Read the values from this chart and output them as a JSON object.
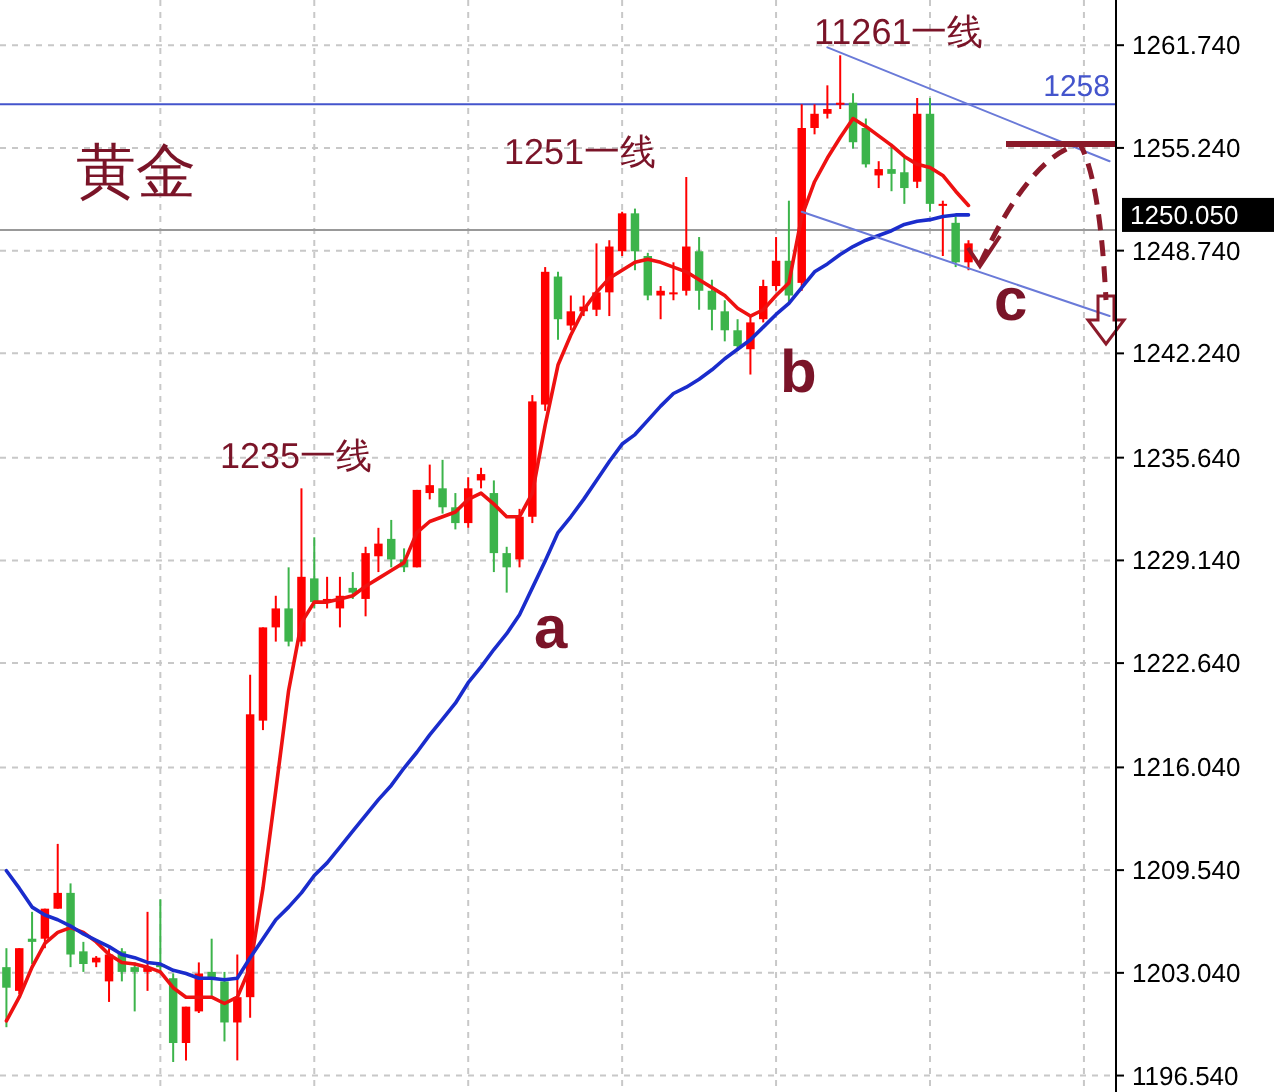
{
  "chart_data": {
    "type": "candlestick",
    "categories": [
      null,
      null,
      null,
      null,
      null,
      null,
      null,
      null,
      null,
      null,
      null,
      null,
      null,
      null,
      null,
      null,
      null,
      null,
      null,
      null,
      null,
      null,
      null,
      null,
      null,
      null,
      null,
      null,
      null,
      null,
      null,
      null,
      null,
      null,
      null,
      null,
      null,
      null,
      null,
      null,
      null,
      null,
      null,
      null,
      null,
      null,
      null,
      null,
      null,
      null,
      null,
      null,
      null,
      null,
      null,
      null,
      null,
      null,
      null,
      null,
      null,
      null,
      null,
      null,
      null,
      null,
      null,
      null,
      null,
      null,
      null,
      null,
      null,
      null,
      null,
      null,
      null,
      null,
      null,
      null,
      null,
      null,
      null,
      null,
      null,
      null,
      null
    ],
    "ohlc": [
      [
        1203.4,
        1204.6,
        1199.6,
        1202.1
      ],
      [
        1201.9,
        1204.6,
        1201.7,
        1204.6
      ],
      [
        1205.2,
        1206.9,
        1203.6,
        1205.0
      ],
      [
        1205.2,
        1207.1,
        1204.6,
        1207.1
      ],
      [
        1207.1,
        1211.2,
        1207.1,
        1208.1
      ],
      [
        1208.1,
        1208.7,
        1203.4,
        1204.2
      ],
      [
        1204.4,
        1205.0,
        1203.1,
        1203.6
      ],
      [
        1203.7,
        1204.1,
        1203.4,
        1204.0
      ],
      [
        1202.5,
        1204.6,
        1201.2,
        1204.2
      ],
      [
        1204.4,
        1204.6,
        1202.5,
        1203.1
      ],
      [
        1203.4,
        1203.7,
        1200.6,
        1203.1
      ],
      [
        1203.1,
        1206.9,
        1201.9,
        1203.4
      ],
      [
        1203.6,
        1207.7,
        1203.0,
        1203.4
      ],
      [
        1202.7,
        1203.0,
        1197.4,
        1198.6
      ],
      [
        1198.6,
        1200.9,
        1197.5,
        1200.9
      ],
      [
        1200.6,
        1203.7,
        1200.5,
        1203.0
      ],
      [
        1203.1,
        1205.2,
        1201.5,
        1202.7
      ],
      [
        1202.5,
        1203.1,
        1198.7,
        1199.9
      ],
      [
        1199.9,
        1204.2,
        1197.5,
        1201.5
      ],
      [
        1201.5,
        1221.9,
        1200.2,
        1219.4
      ],
      [
        1219.0,
        1224.9,
        1218.4,
        1224.9
      ],
      [
        1224.9,
        1226.9,
        1224.0,
        1226.1
      ],
      [
        1226.1,
        1228.7,
        1223.7,
        1224.0
      ],
      [
        1224.0,
        1233.7,
        1223.7,
        1228.1
      ],
      [
        1228.0,
        1230.6,
        1226.1,
        1226.5
      ],
      [
        1226.5,
        1228.1,
        1226.1,
        1226.7
      ],
      [
        1226.1,
        1228.1,
        1224.9,
        1226.9
      ],
      [
        1227.4,
        1228.4,
        1226.7,
        1227.1
      ],
      [
        1226.7,
        1230.0,
        1225.6,
        1229.6
      ],
      [
        1229.4,
        1231.2,
        1228.4,
        1230.2
      ],
      [
        1230.5,
        1231.7,
        1228.7,
        1229.2
      ],
      [
        1229.2,
        1229.9,
        1228.4,
        1228.7
      ],
      [
        1228.7,
        1233.6,
        1228.7,
        1233.6
      ],
      [
        1233.4,
        1235.2,
        1233.0,
        1233.9
      ],
      [
        1233.7,
        1235.5,
        1232.1,
        1232.5
      ],
      [
        1232.5,
        1233.4,
        1231.1,
        1231.5
      ],
      [
        1231.5,
        1234.4,
        1231.2,
        1233.7
      ],
      [
        1234.2,
        1235.0,
        1233.7,
        1234.6
      ],
      [
        1233.4,
        1234.2,
        1228.4,
        1229.6
      ],
      [
        1229.6,
        1230.0,
        1227.1,
        1228.7
      ],
      [
        1229.2,
        1232.4,
        1228.7,
        1231.9
      ],
      [
        1231.9,
        1239.6,
        1231.5,
        1239.2
      ],
      [
        1239.0,
        1247.7,
        1238.6,
        1247.4
      ],
      [
        1247.1,
        1247.4,
        1243.1,
        1244.4
      ],
      [
        1244.0,
        1245.9,
        1243.7,
        1244.9
      ],
      [
        1244.9,
        1245.9,
        1244.6,
        1245.2
      ],
      [
        1245.0,
        1249.2,
        1244.6,
        1246.1
      ],
      [
        1246.1,
        1249.4,
        1244.6,
        1249.0
      ],
      [
        1248.7,
        1251.2,
        1248.4,
        1251.1
      ],
      [
        1251.1,
        1251.4,
        1247.5,
        1248.7
      ],
      [
        1248.4,
        1248.6,
        1245.6,
        1245.9
      ],
      [
        1245.9,
        1246.5,
        1244.4,
        1246.2
      ],
      [
        1246.0,
        1248.0,
        1245.6,
        1246.1
      ],
      [
        1246.2,
        1253.4,
        1245.9,
        1249.0
      ],
      [
        1248.7,
        1249.6,
        1245.0,
        1246.2
      ],
      [
        1246.2,
        1246.9,
        1243.7,
        1245.0
      ],
      [
        1244.9,
        1245.6,
        1243.0,
        1243.7
      ],
      [
        1243.7,
        1244.4,
        1242.4,
        1242.7
      ],
      [
        1242.5,
        1244.6,
        1240.9,
        1244.2
      ],
      [
        1244.4,
        1246.9,
        1244.2,
        1246.5
      ],
      [
        1246.5,
        1249.6,
        1246.2,
        1248.1
      ],
      [
        1248.1,
        1251.9,
        1245.5,
        1245.9
      ],
      [
        1246.7,
        1258.0,
        1246.2,
        1256.5
      ],
      [
        1256.5,
        1258.0,
        1256.1,
        1257.4
      ],
      [
        1257.4,
        1259.2,
        1257.1,
        1257.7
      ],
      [
        1258.0,
        1261.1,
        1257.7,
        1258.1
      ],
      [
        1258.1,
        1258.7,
        1255.2,
        1255.6
      ],
      [
        1256.5,
        1257.1,
        1254.0,
        1254.2
      ],
      [
        1253.5,
        1254.4,
        1252.7,
        1253.9
      ],
      [
        1253.9,
        1255.5,
        1252.5,
        1253.6
      ],
      [
        1253.7,
        1254.6,
        1251.7,
        1252.7
      ],
      [
        1253.1,
        1258.4,
        1252.7,
        1257.4
      ],
      [
        1257.4,
        1258.4,
        1251.2,
        1251.7
      ],
      [
        1251.6,
        1251.9,
        1248.4,
        1251.7
      ],
      [
        1250.5,
        1250.9,
        1247.7,
        1248.0
      ],
      [
        1248.0,
        1249.4,
        1247.5,
        1249.2
      ],
      null,
      null,
      null,
      null,
      null,
      null,
      null,
      null,
      null,
      null,
      null
    ],
    "colors": [
      "#3cb44b",
      "#ff0000",
      "#3cb44b",
      "#ff0000",
      "#ff0000",
      "#3cb44b",
      "#3cb44b",
      "#ff0000",
      "#ff0000",
      "#3cb44b",
      "#3cb44b",
      "#ff0000",
      "#3cb44b",
      "#3cb44b",
      "#ff0000",
      "#ff0000",
      "#3cb44b",
      "#3cb44b",
      "#ff0000",
      "#ff0000",
      "#ff0000",
      "#ff0000",
      "#3cb44b",
      "#ff0000",
      "#3cb44b",
      "#ff0000",
      "#ff0000",
      "#3cb44b",
      "#ff0000",
      "#ff0000",
      "#3cb44b",
      "#3cb44b",
      "#ff0000",
      "#ff0000",
      "#3cb44b",
      "#3cb44b",
      "#ff0000",
      "#ff0000",
      "#3cb44b",
      "#3cb44b",
      "#ff0000",
      "#ff0000",
      "#ff0000",
      "#3cb44b",
      "#ff0000",
      "#ff0000",
      "#ff0000",
      "#ff0000",
      "#ff0000",
      "#3cb44b",
      "#3cb44b",
      "#ff0000",
      "#ff0000",
      "#ff0000",
      "#3cb44b",
      "#3cb44b",
      "#3cb44b",
      "#3cb44b",
      "#ff0000",
      "#ff0000",
      "#ff0000",
      "#3cb44b",
      "#ff0000",
      "#ff0000",
      "#ff0000",
      "#ff0000",
      "#3cb44b",
      "#3cb44b",
      "#ff0000",
      "#3cb44b",
      "#3cb44b",
      "#ff0000",
      "#3cb44b",
      "#ff0000",
      "#3cb44b",
      "#ff0000",
      null,
      null,
      null,
      null,
      null,
      null,
      null,
      null,
      null,
      null,
      null
    ],
    "series": [
      {
        "type": "line",
        "color": "#ee1111",
        "values": [
          1200.0,
          1201.5,
          1203.4,
          1204.9,
          1205.6,
          1205.9,
          1205.6,
          1205.0,
          1204.2,
          1203.7,
          1203.6,
          1203.4,
          1203.1,
          1202.1,
          1201.5,
          1201.5,
          1201.5,
          1201.1,
          1201.5,
          1203.4,
          1208.4,
          1214.6,
          1220.9,
          1225.2,
          1226.5,
          1226.5,
          1226.7,
          1226.9,
          1227.5,
          1228.0,
          1228.5,
          1229.0,
          1230.9,
          1231.6,
          1231.9,
          1232.2,
          1233.0,
          1233.4,
          1232.7,
          1231.9,
          1231.9,
          1233.4,
          1237.7,
          1241.5,
          1243.4,
          1245.0,
          1246.1,
          1247.0,
          1247.5,
          1248.0,
          1248.2,
          1248.0,
          1247.7,
          1247.4,
          1246.9,
          1246.4,
          1245.9,
          1245.1,
          1244.6,
          1245.0,
          1245.9,
          1246.7,
          1250.9,
          1253.1,
          1254.6,
          1255.9,
          1257.1,
          1256.6,
          1256.0,
          1255.4,
          1254.7,
          1254.2,
          1254.0,
          1253.5,
          1252.5,
          1251.6,
          null,
          null,
          null,
          null,
          null,
          null,
          null,
          null,
          null,
          null,
          null
        ]
      },
      {
        "type": "line",
        "color": "#1a2ccc",
        "values": [
          1209.5,
          1208.4,
          1207.2,
          1206.7,
          1206.4,
          1206.0,
          1205.5,
          1205.1,
          1204.7,
          1204.2,
          1204.0,
          1203.7,
          1203.6,
          1203.2,
          1203.0,
          1202.7,
          1202.7,
          1202.6,
          1202.7,
          1204.0,
          1205.2,
          1206.4,
          1207.2,
          1208.1,
          1209.2,
          1210.0,
          1211.0,
          1212.0,
          1213.0,
          1214.0,
          1214.9,
          1216.0,
          1217.0,
          1218.1,
          1219.1,
          1220.1,
          1221.4,
          1222.4,
          1223.5,
          1224.5,
          1225.7,
          1227.4,
          1229.1,
          1230.9,
          1231.9,
          1233.0,
          1234.2,
          1235.4,
          1236.5,
          1237.1,
          1238.0,
          1238.9,
          1239.7,
          1240.1,
          1240.6,
          1241.2,
          1241.9,
          1242.5,
          1243.1,
          1243.9,
          1244.7,
          1245.4,
          1246.4,
          1247.4,
          1247.9,
          1248.5,
          1249.0,
          1249.4,
          1249.7,
          1250.0,
          1250.4,
          1250.6,
          1250.7,
          1250.9,
          1251.0,
          1251.0,
          null,
          null,
          null,
          null,
          null,
          null,
          null,
          null,
          null,
          null,
          null
        ]
      },
      {
        "type": "line",
        "color": "#6a7ad8",
        "values": [
          null,
          null,
          null,
          null,
          null,
          null,
          null,
          null,
          null,
          null,
          null,
          null,
          null,
          null,
          null,
          null,
          null,
          null,
          null,
          null,
          null,
          null,
          null,
          null,
          null,
          null,
          null,
          null,
          null,
          null,
          null,
          null,
          null,
          null,
          null,
          null,
          null,
          null,
          null,
          null,
          null,
          null,
          null,
          null,
          null,
          null,
          null,
          null,
          null,
          null,
          null,
          null,
          null,
          null,
          null,
          null,
          null,
          null,
          null,
          null,
          null,
          null,
          null,
          null,
          1261.6,
          null,
          null,
          null,
          null,
          null,
          null,
          null,
          null,
          null,
          null,
          null,
          null,
          null,
          null,
          null,
          null,
          null,
          null,
          null,
          null,
          null,
          1254.4
        ]
      },
      {
        "type": "line",
        "color": "#6a7ad8",
        "values": [
          null,
          null,
          null,
          null,
          null,
          null,
          null,
          null,
          null,
          null,
          null,
          null,
          null,
          null,
          null,
          null,
          null,
          null,
          null,
          null,
          null,
          null,
          null,
          null,
          null,
          null,
          null,
          null,
          null,
          null,
          null,
          null,
          null,
          null,
          null,
          null,
          null,
          null,
          null,
          null,
          null,
          null,
          null,
          null,
          null,
          null,
          null,
          null,
          null,
          null,
          null,
          null,
          null,
          null,
          null,
          null,
          null,
          null,
          null,
          null,
          null,
          null,
          1251.2,
          null,
          null,
          null,
          null,
          null,
          null,
          null,
          null,
          null,
          null,
          null,
          null,
          null,
          null,
          null,
          null,
          null,
          null,
          null,
          null,
          null,
          null,
          null,
          1244.6
        ]
      }
    ],
    "ylim": [
      1195.5,
      1264.6
    ],
    "yticks": [
      {
        "value": 1261.74,
        "label": "1261.740"
      },
      {
        "value": 1255.24,
        "label": "1255.240"
      },
      {
        "value": 1248.74,
        "label": "1248.740"
      },
      {
        "value": 1242.24,
        "label": "1242.240"
      },
      {
        "value": 1235.64,
        "label": "1235.640"
      },
      {
        "value": 1229.14,
        "label": "1229.140"
      },
      {
        "value": 1222.64,
        "label": "1222.640"
      },
      {
        "value": 1216.04,
        "label": "1216.040"
      },
      {
        "value": 1209.54,
        "label": "1209.540"
      },
      {
        "value": 1203.04,
        "label": "1203.040"
      },
      {
        "value": 1196.54,
        "label": "1196.540"
      }
    ],
    "tick_labels": "y",
    "grid": true,
    "ref_lines": [
      {
        "axis": "y",
        "value": 1258,
        "label": "1258",
        "color": "#4455cc"
      },
      {
        "axis": "y",
        "value": 1250.05,
        "label": "1250.050",
        "color": "#999999"
      }
    ],
    "annotations": [
      "黄金",
      "1235一线",
      "1251一线",
      "11261一线",
      "a",
      "b",
      "c"
    ]
  }
}
